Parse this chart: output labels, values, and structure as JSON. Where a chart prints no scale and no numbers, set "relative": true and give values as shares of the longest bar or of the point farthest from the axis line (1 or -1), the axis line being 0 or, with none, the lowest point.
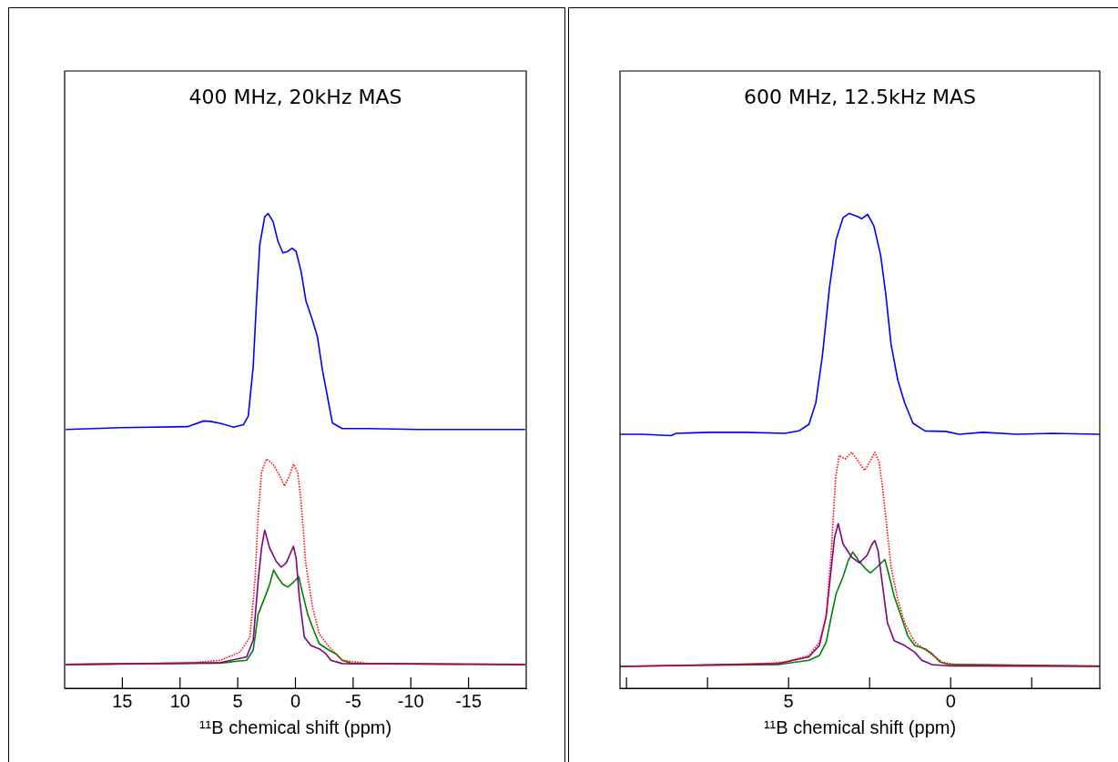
{
  "chart_data": [
    {
      "type": "line",
      "title": "400 MHz, 20kHz MAS",
      "xlabel": "¹¹B chemical shift (ppm)",
      "relative": true,
      "xlim": [
        20,
        -20
      ],
      "xticks": [
        15,
        10,
        5,
        0,
        -5,
        -10,
        -15
      ],
      "series": [
        {
          "color": "#0000ff",
          "x": [
            19.9,
            15.1,
            9.37,
            7.94,
            7.37,
            6.51,
            5.37,
            4.51,
            4.09,
            3.66,
            3.37,
            3.09,
            2.66,
            2.37,
            1.94,
            1.51,
            1.09,
            0.66,
            0.29,
            -0.06,
            -0.49,
            -0.91,
            -1.49,
            -1.91,
            -2.34,
            -2.77,
            -3.2,
            -4.06,
            -6.34,
            -10.63,
            -14.9,
            -19.9
          ],
          "values": [
            0.545,
            0.549,
            0.551,
            0.563,
            0.562,
            0.558,
            0.55,
            0.555,
            0.573,
            0.677,
            0.816,
            0.934,
            0.993,
            1.0,
            0.983,
            0.941,
            0.917,
            0.92,
            0.927,
            0.92,
            0.878,
            0.816,
            0.774,
            0.74,
            0.67,
            0.615,
            0.559,
            0.547,
            0.547,
            0.545,
            0.545,
            0.545
          ]
        },
        {
          "color": "#ff0000",
          "line_style": "dotted",
          "x": [
            19.9,
            9.37,
            6.51,
            4.8,
            3.94,
            3.51,
            3.23,
            2.94,
            2.51,
            1.94,
            1.37,
            0.94,
            0.51,
            0.17,
            -0.2,
            -0.49,
            -0.91,
            -1.49,
            -2.06,
            -2.91,
            -3.49,
            -4.06,
            -6.34,
            -19.9
          ],
          "values": [
            0.05,
            0.053,
            0.059,
            0.076,
            0.108,
            0.226,
            0.365,
            0.455,
            0.483,
            0.472,
            0.448,
            0.426,
            0.448,
            0.472,
            0.455,
            0.392,
            0.26,
            0.17,
            0.115,
            0.087,
            0.073,
            0.059,
            0.052,
            0.05
          ]
        },
        {
          "color": "#800080",
          "x": [
            19.9,
            6.51,
            4.23,
            3.66,
            3.23,
            2.94,
            2.66,
            2.23,
            1.66,
            1.23,
            0.8,
            0.37,
            0.17,
            -0.06,
            -0.34,
            -0.77,
            -1.34,
            -2.06,
            -2.63,
            -3.06,
            -4.06,
            -19.9
          ],
          "values": [
            0.05,
            0.054,
            0.066,
            0.101,
            0.226,
            0.295,
            0.333,
            0.295,
            0.267,
            0.255,
            0.264,
            0.288,
            0.299,
            0.274,
            0.191,
            0.108,
            0.09,
            0.083,
            0.073,
            0.059,
            0.052,
            0.05
          ]
        },
        {
          "color": "#008000",
          "x": [
            19.9,
            6.51,
            4.23,
            3.66,
            3.23,
            2.66,
            2.23,
            1.89,
            1.51,
            1.09,
            0.66,
            0.23,
            -0.29,
            -0.57,
            -1.06,
            -1.49,
            -2.06,
            -2.91,
            -3.49,
            -4.06,
            -4.91,
            -19.9
          ],
          "values": [
            0.05,
            0.053,
            0.059,
            0.08,
            0.156,
            0.191,
            0.219,
            0.249,
            0.233,
            0.219,
            0.213,
            0.222,
            0.235,
            0.205,
            0.156,
            0.128,
            0.094,
            0.08,
            0.073,
            0.059,
            0.052,
            0.05
          ]
        }
      ]
    },
    {
      "type": "line",
      "title": "600 MHz, 12.5kHz MAS",
      "xlabel": "¹¹B chemical shift (ppm)",
      "relative": true,
      "xlim": [
        10.2,
        -4.6
      ],
      "xticks": [
        {
          "value": 10,
          "label": null
        },
        {
          "value": 7.5,
          "label": null
        },
        5,
        {
          "value": 2.5,
          "label": null
        },
        0,
        {
          "value": -2.5,
          "label": null
        }
      ],
      "series": [
        {
          "color": "#0000ff",
          "x": [
            10.2,
            9.53,
            8.63,
            8.47,
            7.42,
            6.37,
            5.11,
            4.68,
            4.37,
            4.16,
            3.95,
            3.74,
            3.53,
            3.32,
            3.13,
            2.89,
            2.74,
            2.56,
            2.37,
            2.16,
            2.0,
            1.84,
            1.63,
            1.42,
            1.16,
            0.79,
            0.16,
            -0.26,
            -1.0,
            -2.05,
            -3.11,
            -4.6
          ],
          "values": [
            0.535,
            0.535,
            0.532,
            0.537,
            0.539,
            0.539,
            0.537,
            0.542,
            0.556,
            0.601,
            0.704,
            0.843,
            0.946,
            0.991,
            1.0,
            0.994,
            0.989,
            0.998,
            0.974,
            0.912,
            0.829,
            0.725,
            0.649,
            0.601,
            0.558,
            0.542,
            0.541,
            0.535,
            0.539,
            0.535,
            0.537,
            0.535
          ]
        },
        {
          "color": "#ff0000",
          "line_style": "dotted",
          "x": [
            10.2,
            6.37,
            5.11,
            4.37,
            4.05,
            3.84,
            3.68,
            3.55,
            3.44,
            3.26,
            3.05,
            2.84,
            2.66,
            2.49,
            2.34,
            2.21,
            2.11,
            2.0,
            1.84,
            1.63,
            1.42,
            1.11,
            0.68,
            0.26,
            -0.16,
            -4.6
          ],
          "values": [
            0.046,
            0.05,
            0.055,
            0.069,
            0.097,
            0.152,
            0.29,
            0.442,
            0.49,
            0.483,
            0.497,
            0.477,
            0.459,
            0.477,
            0.497,
            0.477,
            0.428,
            0.359,
            0.256,
            0.186,
            0.138,
            0.097,
            0.076,
            0.055,
            0.05,
            0.046
          ]
        },
        {
          "color": "#800080",
          "x": [
            10.2,
            5.32,
            4.37,
            4.05,
            3.84,
            3.68,
            3.58,
            3.47,
            3.32,
            3.05,
            2.81,
            2.58,
            2.42,
            2.34,
            2.24,
            2.11,
            1.95,
            1.74,
            1.42,
            1.11,
            0.89,
            0.58,
            0.05,
            -4.6
          ],
          "values": [
            0.046,
            0.052,
            0.066,
            0.09,
            0.152,
            0.256,
            0.318,
            0.347,
            0.304,
            0.276,
            0.264,
            0.28,
            0.304,
            0.311,
            0.29,
            0.221,
            0.138,
            0.1,
            0.09,
            0.076,
            0.059,
            0.05,
            0.047,
            0.046
          ]
        },
        {
          "color": "#008000",
          "x": [
            10.2,
            5.32,
            4.37,
            4.05,
            3.84,
            3.68,
            3.53,
            3.32,
            3.16,
            3.02,
            2.84,
            2.63,
            2.47,
            2.26,
            2.11,
            2.03,
            1.89,
            1.74,
            1.53,
            1.32,
            1.11,
            0.79,
            0.58,
            0.32,
            0.05,
            -4.6
          ],
          "values": [
            0.046,
            0.05,
            0.059,
            0.069,
            0.097,
            0.152,
            0.2,
            0.235,
            0.269,
            0.287,
            0.269,
            0.252,
            0.243,
            0.256,
            0.266,
            0.271,
            0.235,
            0.193,
            0.152,
            0.11,
            0.09,
            0.083,
            0.073,
            0.055,
            0.05,
            0.047
          ]
        }
      ]
    }
  ]
}
